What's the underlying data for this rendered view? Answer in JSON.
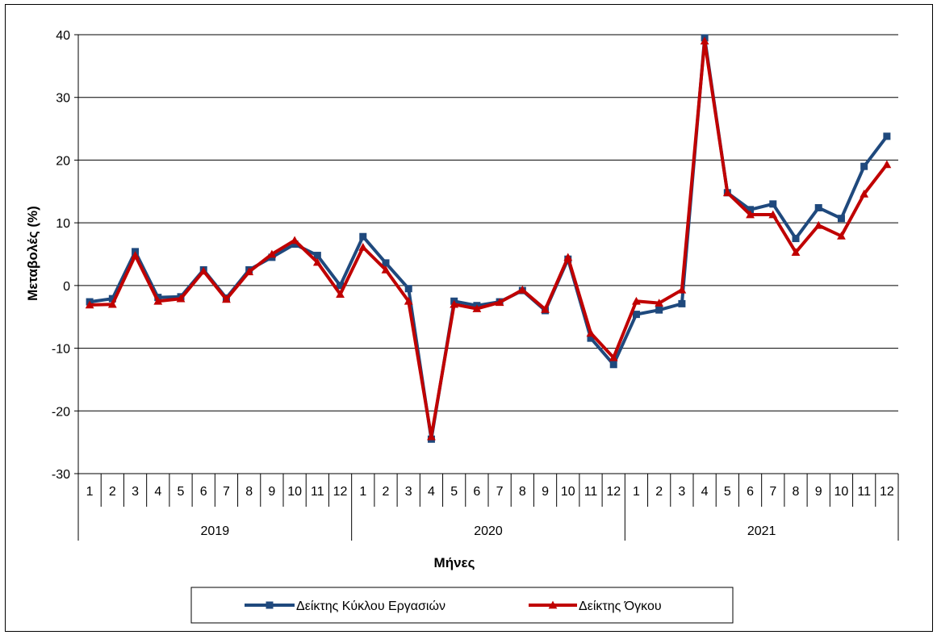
{
  "chart_data": {
    "type": "line",
    "ylabel": "Μεταβολές  (%)",
    "xlabel": "Μήνες",
    "ylim": [
      -30,
      40
    ],
    "yticks": [
      -30,
      -20,
      -10,
      0,
      10,
      20,
      30,
      40
    ],
    "grid": true,
    "legend_position": "bottom",
    "years": [
      "2019",
      "2020",
      "2021"
    ],
    "months": [
      "1",
      "2",
      "3",
      "4",
      "5",
      "6",
      "7",
      "8",
      "9",
      "10",
      "11",
      "12",
      "1",
      "2",
      "3",
      "4",
      "5",
      "6",
      "7",
      "8",
      "9",
      "10",
      "11",
      "12",
      "1",
      "2",
      "3",
      "4",
      "5",
      "6",
      "7",
      "8",
      "9",
      "10",
      "11",
      "12"
    ],
    "series": [
      {
        "name": "Δείκτης Κύκλου Εργασιών",
        "color": "#1f497d",
        "marker": "square",
        "values": [
          -2.6,
          -2.1,
          5.4,
          -1.9,
          -1.8,
          2.5,
          -2.0,
          2.5,
          4.5,
          6.6,
          4.8,
          0.0,
          7.8,
          3.6,
          -0.5,
          -24.5,
          -2.5,
          -3.2,
          -2.6,
          -0.8,
          -4.0,
          4.2,
          -8.4,
          -12.6,
          -4.6,
          -3.9,
          -2.9,
          39.5,
          14.8,
          12.1,
          13.0,
          7.5,
          12.4,
          10.7,
          19.0,
          23.8
        ]
      },
      {
        "name": "Δείκτης Όγκου",
        "color": "#c00000",
        "marker": "triangle",
        "values": [
          -3.1,
          -3.0,
          4.8,
          -2.5,
          -2.1,
          2.3,
          -2.2,
          2.2,
          5.0,
          7.2,
          3.7,
          -1.4,
          6.1,
          2.5,
          -2.5,
          -24.1,
          -3.0,
          -3.7,
          -2.7,
          -0.7,
          -3.8,
          4.5,
          -7.6,
          -11.5,
          -2.5,
          -2.8,
          -0.7,
          39.0,
          14.8,
          11.3,
          11.3,
          5.3,
          9.6,
          7.9,
          14.6,
          19.3
        ]
      }
    ]
  }
}
